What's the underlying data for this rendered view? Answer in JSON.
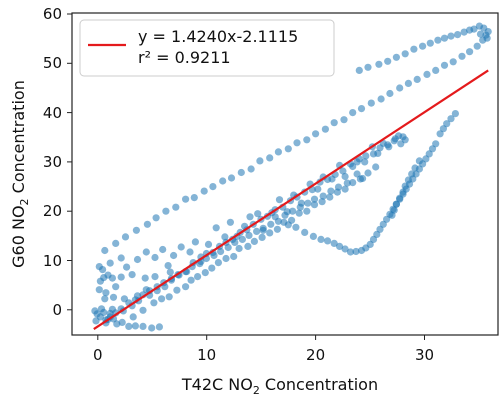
{
  "chart_data": {
    "type": "scatter",
    "xlabel_parts": [
      "T42C NO",
      "2",
      " Concentration"
    ],
    "ylabel_parts": [
      "G60 NO",
      "2",
      " Concentration"
    ],
    "xlim": [
      -2.5,
      36.5
    ],
    "ylim": [
      -4,
      60
    ],
    "xticks": [
      0,
      10,
      20,
      30
    ],
    "yticks": [
      0,
      10,
      20,
      30,
      40,
      50,
      60
    ],
    "xtick_labels": [
      "0",
      "10",
      "20",
      "30"
    ],
    "ytick_labels": [
      "0",
      "10",
      "20",
      "30",
      "40",
      "50",
      "60"
    ],
    "legend": {
      "placement": "top-left",
      "entries": [
        "y = 1.4240x-2.1115",
        "r² = 0.9211"
      ]
    },
    "fit_line": {
      "slope": 1.424,
      "intercept": -2.1115,
      "x_range": [
        -0.5,
        35.6
      ],
      "color": "#e41a1c"
    },
    "series": [
      {
        "color": "#1f77b4",
        "points": [
          [
            -0.4,
            0.8
          ],
          [
            -0.2,
            0.2
          ],
          [
            0.1,
            -0.4
          ],
          [
            0.4,
            0.5
          ],
          [
            0.8,
            -0.9
          ],
          [
            1.0,
            0.3
          ],
          [
            -0.3,
            -1.2
          ],
          [
            0.6,
            -1.6
          ],
          [
            1.3,
            -0.8
          ],
          [
            1.6,
            -1.8
          ],
          [
            2.1,
            -1.5
          ],
          [
            2.7,
            -2.3
          ],
          [
            3.3,
            -2.2
          ],
          [
            4.0,
            -2.3
          ],
          [
            4.8,
            -2.6
          ],
          [
            5.5,
            -2.4
          ],
          [
            0.2,
            1.2
          ],
          [
            1.2,
            1.1
          ],
          [
            0.0,
            5.0
          ],
          [
            0.0,
            9.6
          ],
          [
            0.3,
            9.0
          ],
          [
            0.1,
            6.7
          ],
          [
            0.4,
            7.4
          ],
          [
            0.6,
            4.4
          ],
          [
            0.8,
            7.9
          ],
          [
            1.2,
            7.3
          ],
          [
            2.0,
            7.5
          ],
          [
            3.0,
            8.0
          ],
          [
            4.2,
            7.3
          ],
          [
            5.1,
            7.6
          ],
          [
            6.5,
            8.5
          ],
          [
            1.3,
            3.5
          ],
          [
            2.3,
            3.2
          ],
          [
            3.5,
            3.8
          ],
          [
            4.3,
            5.0
          ],
          [
            0.5,
            3.2
          ],
          [
            1.5,
            5.6
          ],
          [
            1.0,
            10.3
          ],
          [
            2.0,
            11.3
          ],
          [
            2.5,
            9.5
          ],
          [
            3.5,
            11.0
          ],
          [
            4.3,
            12.5
          ],
          [
            5.1,
            11.4
          ],
          [
            5.8,
            13.0
          ],
          [
            6.3,
            9.8
          ],
          [
            6.8,
            11.8
          ],
          [
            7.5,
            13.5
          ],
          [
            8.3,
            12.5
          ],
          [
            8.8,
            14.5
          ],
          [
            9.3,
            11.5
          ],
          [
            10.0,
            14.0
          ],
          [
            10.7,
            17.3
          ],
          [
            11.5,
            15.5
          ],
          [
            12.0,
            18.4
          ],
          [
            12.6,
            15.6
          ],
          [
            13.3,
            17.6
          ],
          [
            13.8,
            19.5
          ],
          [
            14.5,
            20.1
          ],
          [
            15.0,
            16.8
          ],
          [
            15.8,
            20.3
          ],
          [
            16.5,
            22.9
          ],
          [
            17.2,
            20.5
          ],
          [
            17.8,
            23.8
          ],
          [
            18.5,
            22.2
          ],
          [
            19.3,
            26.0
          ],
          [
            20.0,
            25.0
          ],
          [
            20.5,
            27.4
          ],
          [
            21.3,
            27.0
          ],
          [
            22.0,
            29.7
          ],
          [
            22.5,
            27.5
          ],
          [
            23.2,
            29.5
          ],
          [
            23.8,
            31.0
          ],
          [
            24.3,
            30.4
          ],
          [
            25.0,
            33.4
          ],
          [
            25.5,
            32.1
          ],
          [
            26.0,
            34.1
          ],
          [
            26.5,
            33.4
          ],
          [
            27.0,
            34.6
          ],
          [
            27.4,
            35.6
          ],
          [
            27.8,
            35.4
          ],
          [
            2.2,
            0.8
          ],
          [
            3.0,
            1.8
          ],
          [
            3.6,
            2.8
          ],
          [
            4.6,
            3.9
          ],
          [
            5.3,
            4.8
          ],
          [
            6.0,
            5.6
          ],
          [
            6.6,
            6.9
          ],
          [
            7.3,
            7.9
          ],
          [
            8.0,
            8.6
          ],
          [
            8.6,
            10.4
          ],
          [
            9.3,
            10.6
          ],
          [
            9.8,
            12.2
          ],
          [
            10.4,
            12.4
          ],
          [
            11.0,
            13.6
          ],
          [
            11.6,
            14.4
          ],
          [
            12.2,
            15.0
          ],
          [
            12.9,
            16.4
          ],
          [
            13.5,
            16.9
          ],
          [
            14.1,
            18.0
          ],
          [
            14.8,
            19.0
          ],
          [
            15.4,
            19.6
          ],
          [
            16.1,
            20.9
          ],
          [
            16.8,
            21.4
          ],
          [
            17.5,
            22.7
          ],
          [
            18.1,
            23.4
          ],
          [
            18.8,
            24.4
          ],
          [
            19.5,
            24.9
          ],
          [
            20.2,
            26.4
          ],
          [
            20.9,
            26.9
          ],
          [
            21.6,
            27.9
          ],
          [
            22.3,
            28.6
          ],
          [
            23.0,
            30.0
          ],
          [
            23.6,
            30.4
          ],
          [
            24.4,
            31.6
          ],
          [
            25.1,
            32.0
          ],
          [
            25.7,
            33.2
          ],
          [
            26.4,
            33.8
          ],
          [
            27.1,
            35.0
          ],
          [
            27.6,
            34.0
          ],
          [
            28.0,
            34.8
          ],
          [
            3.1,
            -0.4
          ],
          [
            4.0,
            0.9
          ],
          [
            5.0,
            2.4
          ],
          [
            5.7,
            3.2
          ],
          [
            6.4,
            3.6
          ],
          [
            7.1,
            4.9
          ],
          [
            7.9,
            5.6
          ],
          [
            8.4,
            6.9
          ],
          [
            9.0,
            7.6
          ],
          [
            9.7,
            8.4
          ],
          [
            10.3,
            9.3
          ],
          [
            10.9,
            10.4
          ],
          [
            11.6,
            11.2
          ],
          [
            12.3,
            11.6
          ],
          [
            12.8,
            13.2
          ],
          [
            13.6,
            13.6
          ],
          [
            14.2,
            14.6
          ],
          [
            14.9,
            15.4
          ],
          [
            15.6,
            16.3
          ],
          [
            16.3,
            17.0
          ],
          [
            16.9,
            18.4
          ],
          [
            17.6,
            18.8
          ],
          [
            18.3,
            20.2
          ],
          [
            19.0,
            20.6
          ],
          [
            19.7,
            21.9
          ],
          [
            20.4,
            22.5
          ],
          [
            21.1,
            23.4
          ],
          [
            21.8,
            24.4
          ],
          [
            22.5,
            25.0
          ],
          [
            23.2,
            26.3
          ],
          [
            23.9,
            27.0
          ],
          [
            24.6,
            28.2
          ],
          [
            0.5,
            12.8
          ],
          [
            1.5,
            14.2
          ],
          [
            2.4,
            15.5
          ],
          [
            3.4,
            16.8
          ],
          [
            4.4,
            18.0
          ],
          [
            5.2,
            19.3
          ],
          [
            6.1,
            20.6
          ],
          [
            7.0,
            21.4
          ],
          [
            7.9,
            23.0
          ],
          [
            8.7,
            23.3
          ],
          [
            9.6,
            24.6
          ],
          [
            10.4,
            25.5
          ],
          [
            11.3,
            26.6
          ],
          [
            12.1,
            27.2
          ],
          [
            13.0,
            28.3
          ],
          [
            13.9,
            29.0
          ],
          [
            14.7,
            30.6
          ],
          [
            15.6,
            31.2
          ],
          [
            16.4,
            32.4
          ],
          [
            17.3,
            33.0
          ],
          [
            18.1,
            34.2
          ],
          [
            19.0,
            34.8
          ],
          [
            19.8,
            36.0
          ],
          [
            20.7,
            36.9
          ],
          [
            21.5,
            38.2
          ],
          [
            22.4,
            38.8
          ],
          [
            23.2,
            40.2
          ],
          [
            24.0,
            41.0
          ],
          [
            24.9,
            42.1
          ],
          [
            25.8,
            42.9
          ],
          [
            26.6,
            44.0
          ],
          [
            27.5,
            45.1
          ],
          [
            28.3,
            46.0
          ],
          [
            29.1,
            46.8
          ],
          [
            30.0,
            47.8
          ],
          [
            30.8,
            48.6
          ],
          [
            31.6,
            49.6
          ],
          [
            32.4,
            50.3
          ],
          [
            33.2,
            51.4
          ],
          [
            33.9,
            52.3
          ],
          [
            34.6,
            53.4
          ],
          [
            35.1,
            54.6
          ],
          [
            35.4,
            55.6
          ],
          [
            35.6,
            56.3
          ],
          [
            35.2,
            57.0
          ],
          [
            34.8,
            57.4
          ],
          [
            34.3,
            56.8
          ],
          [
            33.9,
            56.6
          ],
          [
            33.4,
            56.2
          ],
          [
            32.8,
            55.7
          ],
          [
            32.2,
            55.4
          ],
          [
            31.6,
            55.0
          ],
          [
            31.0,
            54.6
          ],
          [
            30.3,
            54.0
          ],
          [
            29.6,
            53.4
          ],
          [
            28.8,
            52.8
          ],
          [
            28.0,
            51.9
          ],
          [
            27.2,
            51.2
          ],
          [
            26.4,
            50.4
          ],
          [
            25.6,
            49.8
          ],
          [
            24.6,
            49.2
          ],
          [
            23.8,
            48.6
          ],
          [
            35.5,
            55.0
          ],
          [
            34.9,
            55.8
          ],
          [
            16.1,
            19.5
          ],
          [
            17.3,
            17.9
          ],
          [
            18.0,
            17.4
          ],
          [
            18.8,
            16.4
          ],
          [
            19.6,
            15.6
          ],
          [
            20.3,
            15.0
          ],
          [
            20.9,
            14.7
          ],
          [
            21.5,
            14.2
          ],
          [
            22.0,
            13.6
          ],
          [
            22.5,
            13.1
          ],
          [
            23.0,
            12.5
          ],
          [
            23.5,
            12.6
          ],
          [
            24.0,
            12.8
          ],
          [
            24.4,
            13.3
          ],
          [
            24.8,
            14.0
          ],
          [
            25.1,
            15.0
          ],
          [
            25.4,
            16.0
          ],
          [
            25.7,
            17.0
          ],
          [
            26.0,
            18.0
          ],
          [
            26.3,
            19.0
          ],
          [
            26.6,
            20.0
          ],
          [
            26.9,
            21.0
          ],
          [
            27.2,
            22.0
          ],
          [
            27.5,
            23.0
          ],
          [
            27.8,
            24.0
          ],
          [
            28.1,
            25.0
          ],
          [
            28.4,
            26.0
          ],
          [
            28.7,
            27.0
          ],
          [
            29.0,
            28.0
          ],
          [
            29.3,
            29.0
          ],
          [
            29.6,
            30.0
          ],
          [
            29.9,
            31.0
          ],
          [
            30.2,
            32.0
          ],
          [
            30.5,
            33.0
          ],
          [
            30.8,
            34.0
          ],
          [
            31.2,
            36.0
          ],
          [
            31.5,
            37.0
          ],
          [
            31.8,
            38.0
          ],
          [
            32.2,
            39.0
          ],
          [
            32.6,
            40.0
          ],
          [
            29.3,
            30.6
          ],
          [
            28.9,
            29.2
          ],
          [
            28.6,
            28.0
          ],
          [
            28.3,
            26.8
          ],
          [
            28.0,
            25.6
          ],
          [
            27.8,
            24.4
          ],
          [
            27.5,
            23.2
          ],
          [
            27.2,
            22.0
          ],
          [
            27.0,
            20.8
          ],
          [
            26.8,
            19.8
          ],
          [
            25.3,
            29.4
          ],
          [
            24.1,
            27.1
          ],
          [
            23.6,
            28.0
          ],
          [
            22.7,
            26.2
          ],
          [
            21.9,
            25.4
          ],
          [
            21.2,
            24.6
          ],
          [
            20.5,
            23.6
          ],
          [
            19.7,
            23.0
          ],
          [
            19.1,
            22.2
          ],
          [
            18.4,
            21.4
          ],
          [
            17.7,
            20.6
          ],
          [
            17.0,
            19.8
          ],
          [
            16.4,
            18.6
          ],
          [
            15.7,
            18.0
          ],
          [
            15.0,
            17.2
          ],
          [
            14.4,
            16.6
          ],
          [
            13.7,
            15.8
          ],
          [
            13.1,
            15.0
          ],
          [
            12.4,
            14.4
          ],
          [
            11.8,
            13.4
          ],
          [
            11.1,
            12.6
          ],
          [
            10.5,
            11.8
          ],
          [
            9.8,
            11.2
          ],
          [
            9.2,
            10.2
          ],
          [
            8.5,
            9.6
          ],
          [
            7.9,
            8.6
          ],
          [
            7.2,
            8.0
          ],
          [
            6.6,
            7.2
          ],
          [
            5.9,
            6.4
          ],
          [
            5.3,
            5.6
          ],
          [
            4.6,
            4.8
          ],
          [
            4.0,
            4.0
          ],
          [
            3.3,
            3.0
          ],
          [
            2.7,
            2.4
          ],
          [
            2.0,
            1.2
          ],
          [
            1.5,
            0.4
          ],
          [
            1.0,
            -0.4
          ],
          [
            0.6,
            -1.0
          ]
        ]
      }
    ]
  }
}
